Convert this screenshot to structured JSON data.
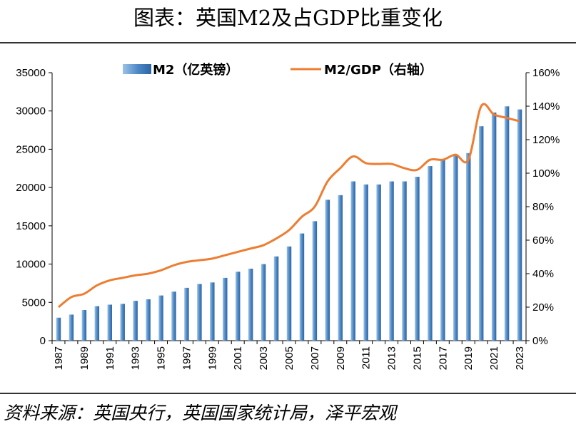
{
  "header": {
    "title": "图表：英国M2及占GDP比重变化"
  },
  "footer": {
    "source": "资料来源：英国央行，英国国家统计局，泽平宏观"
  },
  "colors": {
    "bar": "#4a86c5",
    "bar_light": "#9cc3e6",
    "line": "#ed7d31",
    "axis": "#000000"
  },
  "chart_data": {
    "type": "bar+line",
    "title": "图表：英国M2及占GDP比重变化",
    "categories": [
      1987,
      1988,
      1989,
      1990,
      1991,
      1992,
      1993,
      1994,
      1995,
      1996,
      1997,
      1998,
      1999,
      2000,
      2001,
      2002,
      2003,
      2004,
      2005,
      2006,
      2007,
      2008,
      2009,
      2010,
      2011,
      2012,
      2013,
      2014,
      2015,
      2016,
      2017,
      2018,
      2019,
      2020,
      2021,
      2022,
      2023
    ],
    "x_tick_labels": [
      "1987",
      "1989",
      "1991",
      "1993",
      "1995",
      "1997",
      "1999",
      "2001",
      "2003",
      "2005",
      "2007",
      "2009",
      "2011",
      "2013",
      "2015",
      "2017",
      "2019",
      "2021",
      "2023"
    ],
    "series": [
      {
        "name": "M2（亿英镑）",
        "type": "bar",
        "axis": "left",
        "values": [
          3000,
          3400,
          4000,
          4500,
          4700,
          4800,
          5200,
          5400,
          5900,
          6400,
          6900,
          7400,
          7600,
          8200,
          9000,
          9400,
          10000,
          11000,
          12300,
          14000,
          15600,
          18400,
          19000,
          20800,
          20400,
          20400,
          20800,
          20800,
          21400,
          22800,
          23600,
          24200,
          24500,
          28000,
          29800,
          30600,
          30200
        ]
      },
      {
        "name": "M2/GDP（右轴）",
        "type": "line",
        "axis": "right",
        "values": [
          20,
          26,
          28,
          33,
          36,
          37.5,
          39,
          40,
          42,
          45,
          47,
          48,
          49,
          51,
          53,
          55,
          57,
          61,
          66,
          74,
          80,
          95,
          103,
          110,
          106,
          105.5,
          105.5,
          103,
          102,
          108,
          108,
          111,
          108,
          140,
          135,
          133,
          131
        ]
      }
    ],
    "y_left": {
      "min": 0,
      "max": 35000,
      "ticks": [
        0,
        5000,
        10000,
        15000,
        20000,
        25000,
        30000,
        35000
      ]
    },
    "y_right": {
      "min": 0,
      "max": 160,
      "ticks": [
        0,
        20,
        40,
        60,
        80,
        100,
        120,
        140,
        160
      ],
      "suffix": "%"
    },
    "legend": {
      "position": "top-center",
      "entries": [
        "M2（亿英镑）",
        "M2/GDP（右轴）"
      ]
    },
    "grid": false
  }
}
